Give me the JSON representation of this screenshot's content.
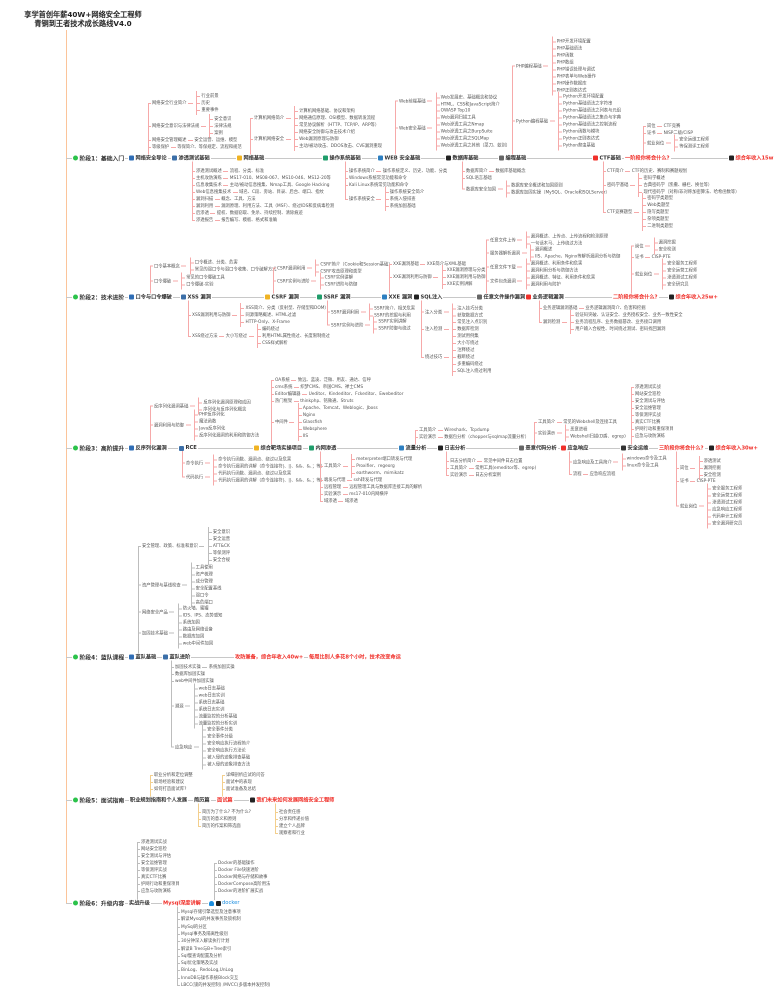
{
  "title": {
    "line1": "享学首创年薪40W+网络安全工程师",
    "line2": "青铜到王者技术成长路线V4.0"
  },
  "colors": {
    "axis": "#fbc49a",
    "row": "#c8c8c8",
    "pink": "#f6a9a9",
    "gray": "#bdbdbd",
    "gold": "#f3cf8d",
    "accent_red": "#f0302a",
    "stage_icon": "#2bc24a"
  },
  "stages": [
    {
      "nodes": [
        "阶段1：基础入门",
        "网络安全导论",
        "渗透测试基础",
        "网络基础",
        "操作系统基础",
        "WEB 安全基础",
        "数据库基础",
        "编程基础",
        "CTF基础",
        "一阶段你将会什么?",
        "综合年收入15w+"
      ],
      "branches": [
        [
          {
            "label": "网络安全行业简介",
            "items": [
              "行业前景",
              "历史",
              "重要事件"
            ]
          },
          {
            "label": "网络安全意识与法律法规",
            "items": [
              "安全意识",
              "法律法规",
              "案例"
            ]
          },
          {
            "label": "网络安全管理概述",
            "items": [
              "安全运营、运维、模型"
            ]
          },
          {
            "label": "等级保护",
            "items": [
              "等保简介、等保规定、流程和规范"
            ]
          }
        ],
        [
          {
            "label": "渗透测试概述",
            "items": [
              "流程、分类、标准"
            ]
          },
          {
            "label": "主机攻防演练",
            "items": [
              "MS17-010、MS08-067、MS10-046、MS12-20等"
            ]
          },
          {
            "label": "信息收集技术",
            "items": [
              "主动/被动信息搜集、Nmap工具、Google Hacking"
            ]
          },
          {
            "label": "Web信息搜集技术",
            "items": [
              "域名、C段、旁站、目录、后台、端口、指纹"
            ]
          },
          {
            "label": "漏洞扫描",
            "items": [
              "概念、工具、方法"
            ]
          },
          {
            "label": "漏洞利用",
            "items": [
              "漏洞原理、利用方法、工具（MSF）、绕过IDS和反病毒检测"
            ]
          },
          {
            "label": "后渗透",
            "items": [
              "提权、数据窃取、免杀、持续控制、清除痕迹"
            ]
          },
          {
            "label": "渗透报告",
            "items": [
              "报告编写、模板、格式和准确"
            ]
          }
        ],
        [
          {
            "label": "计算机网络简介",
            "items": [
              "计算机网络基础、协议和架构",
              "网络通信原理、OSI模型、数据转发流程",
              "常见协议解析（HTTP、TCP/IP、ARP等）"
            ]
          },
          {
            "label": "计算机网络安全",
            "items": [
              "网络安全防御与攻击技术介绍",
              "Web漏洞原理与防御",
              "主动/被动攻击、DDOS攻击、CVE漏洞重现"
            ]
          }
        ],
        [
          {
            "label": "操作系统简介",
            "items": [
              "操作系统定义、历史、功能、分类"
            ]
          },
          {
            "label": "Windows系统常见功能和命令"
          },
          {
            "label": "Kali Linux系统常见功能和命令"
          },
          {
            "label": "操作系统安全",
            "items": [
              "操作系统安全简介",
              "系统入侵排查",
              "系统加固基础"
            ]
          }
        ],
        [
          {
            "label": "Web前端基础",
            "items": [
              "Web发展史、基础概念和协议",
              "HTML、CSS和JavaScript简介"
            ]
          },
          {
            "label": "Web安全基础",
            "items": [
              "OWASP Top10",
              "Web漏洞扫描工具",
              "Web渗透工具之Nmap",
              "Web渗透工具之BurpSuite",
              "Web渗透工具之SQLMap",
              "Web渗透工具之其他（菜刀、蚁剑）"
            ]
          }
        ],
        [
          {
            "label": "数据库简介",
            "items": [
              "数据库基础概念"
            ]
          },
          {
            "label": "SQL语言基础"
          },
          {
            "label": "数据库安全加固",
            "items": [
              "数据库安全概述和加固原则",
              "数据库加固实操（MySQL、Oracle和SQLServer）"
            ]
          }
        ],
        [
          {
            "label": "PHP编程基础",
            "items": [
              "PHP开发环境配置",
              "PHP基础语法",
              "PHP函数",
              "PHP数组",
              "PHP错误处理与调试",
              "PHP表单与Web操作",
              "PHP操作数据库",
              "PHP正则表达式"
            ]
          },
          {
            "label": "Python编程基础",
            "items": [
              "Python开发环境配置",
              "Python基础语法之字符串",
              "Python基础语法之列表与元组",
              "Python基础语法之集合与字典",
              "Python基础语法之控制流程",
              "Python函数与模块",
              "Python正则表达式",
              "Python爬虫基础"
            ]
          }
        ],
        [
          {
            "label": "CTF简介",
            "items": [
              "CTF的历史、赛制和赛题规划"
            ]
          },
          {
            "label": "密码学基础",
            "items": [
              "密码学概述",
              "古典密码学（凯撒、栅栏、换位等）",
              "现代密码学（对称/非对称加密算法、哈希函数等）"
            ]
          },
          {
            "label": "CTF竞赛题型",
            "items": [
              "密码学类题型",
              "Web类题型",
              "隐写类题型",
              "杂项类题型",
              "二进制类题型"
            ]
          }
        ],
        [
          {
            "label": "岗位",
            "items": [
              "CTF竞赛"
            ]
          },
          {
            "label": "证书",
            "items": [
              "NISP二级/CISP"
            ]
          },
          {
            "label": "就业岗位",
            "items": [
              "安全运维工程师",
              "等保测评工程师"
            ]
          }
        ]
      ]
    },
    {
      "nodes": [
        "阶段2：技术进阶",
        "口令与口令爆破",
        "XSS 漏洞",
        "CSRF 漏洞",
        "SSRF 漏洞",
        "XXE 漏洞",
        "SQL注入",
        "任意文件操作漏洞",
        "业务逻辑漏洞",
        "二阶段你将会什么?",
        "综合年收入25w+"
      ],
      "branches": [
        [
          {
            "label": "口令基本概念",
            "items": [
              "口令概述、分类、危害",
              "常见的弱口令与弱口令收集、口令破解方式"
            ]
          },
          {
            "label": "口令爆破",
            "items": [
              "常见的口令爆破工具",
              "口令爆破-实验"
            ]
          }
        ],
        [
          {
            "label": "XSS漏洞利用与防御",
            "items": [
              "XSS简介、分类（反射型、存储型和DOM）",
              "同源策略概述、HTML过滤",
              "HTTP-Only、X-Frame"
            ]
          },
          {
            "label": "XSS绕过方法",
            "items": [
              {
                "label": "大小写绕过",
                "items": [
                  "编码绕过",
                  "利用HTML属性绕过、长度限制绕过",
                  "CSS样式解析"
                ]
              }
            ]
          }
        ],
        [
          {
            "label": "CSRF漏洞利用",
            "items": [
              "CSRF简介（Cookie和Session基础）",
              "CSRF攻击原理和类型"
            ]
          },
          {
            "label": "CSRF实例与进阶",
            "items": [
              "CSRF实例讲解",
              "CSRF进阶与防御"
            ]
          }
        ],
        [
          {
            "label": "SSRF漏洞利用",
            "items": [
              "SSRF简介、相关危害",
              "SSRF的挖掘与利用"
            ]
          },
          {
            "label": "SSRF实例与进阶",
            "items": [
              "SSRF实例讲解",
              "SSRF防御与绕过"
            ]
          }
        ],
        [
          {
            "label": "XXE漏洞基础",
            "items": [
              "XXE简介与XML基础"
            ]
          },
          {
            "label": "XXE漏洞利用与防御",
            "items": [
              "XXE漏洞原理与分类",
              "XXE漏洞利用与防御",
              "XXE实例讲解"
            ]
          }
        ],
        [
          {
            "label": "注入分类",
            "items": [
              "注入技巧分类",
              "获取数据方式"
            ]
          },
          {
            "label": "注入检测",
            "items": [
              "常见注入点识别",
              "数据库检测",
              "测试用例集"
            ]
          },
          {
            "label": "绕过技巧",
            "items": [
              "大小写绕过",
              "注释绕过",
              "截断绕过",
              "多重编码绕过",
              "SQL注入绕过利用"
            ]
          }
        ],
        [
          {
            "label": "任意文件上传",
            "items": [
              "漏洞概述、上传点、上传流程和检测原理",
              "一句话木马、上传绕过方法"
            ]
          },
          {
            "label": "服务器解析漏洞",
            "items": [
              "漏洞概述",
              "IIS、Apache、Nginx等解析漏洞分析与防御"
            ]
          },
          {
            "label": "任意文件下载",
            "items": [
              "漏洞概述、利用条件和危害",
              "漏洞利用分析与防御方法"
            ]
          },
          {
            "label": "文件包含漏洞",
            "items": [
              "漏洞概述、特征、利用条件和危害",
              "漏洞利用与防护"
            ]
          }
        ],
        [
          {
            "label": "业务逻辑漏洞基础",
            "items": [
              "业务逻辑漏洞简介、危害和挖掘"
            ]
          },
          {
            "label": "漏洞检测",
            "items": [
              "验证码突破、认证安全、业务授权安全、业务一致性安全",
              "业务流程乱序、业务数据篡改、业务接口调用",
              "用户输入合规性、时间绕过测试、密码找回漏洞"
            ]
          }
        ],
        [
          {
            "label": "岗位",
            "items": [
              "漏洞挖掘",
              "安全检测"
            ]
          },
          {
            "label": "证书",
            "items": [
              "CISP-PTE"
            ]
          },
          {
            "label": "就业岗位",
            "items": [
              "安全服务工程师",
              "安全运营工程师",
              "渗透测试工程师",
              "安全研究员"
            ]
          }
        ]
      ]
    },
    {
      "nodes": [
        "阶段3：高阶提升",
        "反序列化漏洞",
        "RCE",
        "综合靶场实操项目",
        "内网渗透",
        "流量分析",
        "日志分析",
        "恶意代码分析",
        "应急响应",
        "安全运维",
        "三阶段你将会什么?",
        "综合年收入30w+"
      ],
      "branches": [
        [
          {
            "label": "反序列化漏洞基础",
            "items": [
              "反序列化漏洞原理和成因",
              "序列化与反序列化概念"
            ]
          },
          {
            "label": "漏洞利用与防御",
            "items": [
              "PHP反序列化",
              "魔法函数",
              "Java反序列化",
              "反序列化漏洞的利用和防御方法"
            ]
          }
        ],
        [
          {
            "label": "命令执行",
            "items": [
              "命令执行函数、漏洞点、绕过以及危害",
              "命令执行漏洞的详解（命令连接符|、||、&&、&、；等）"
            ]
          },
          {
            "label": "代码执行",
            "items": [
              "代码执行函数、漏洞点、绕过以及危害",
              "代码执行漏洞的详解（命令连接符|、||、&&、&、；等）"
            ]
          }
        ],
        [
          {
            "label": "OA系统",
            "items": [
              "致远、蓝凌、泛微、用友、通达、信呼"
            ]
          },
          {
            "label": "cms系统",
            "items": [
              "织梦CMS、帝国CMS、禅士CMS"
            ]
          },
          {
            "label": "Editor编辑器",
            "items": [
              "Ueditor、Kindeditor、Fckeditor、Ewebeditor"
            ]
          },
          {
            "label": "热门框架",
            "items": [
              "thinkphp、铭微通、Struts"
            ]
          },
          {
            "label": "中间件",
            "items": [
              "Apache、Tomcat、Weblogic、Jboss",
              "Nginx",
              "Glassfish",
              "Websphere",
              "IIS"
            ]
          }
        ],
        [
          {
            "label": "工具简介",
            "items": [
              "meterpreter端口转发与代理",
              "Proxifier、regeorg",
              "earthworm、mimikatz"
            ]
          },
          {
            "label": "端发与代理",
            "items": [
              "ssh转发与代理"
            ]
          },
          {
            "label": "远程管理",
            "items": [
              "远程管理工具与数据库连接工具的解析"
            ]
          },
          {
            "label": "实验演示",
            "items": [
              "ms17-010内网横评"
            ]
          },
          {
            "label": "域渗透",
            "items": [
              "域渗透"
            ]
          }
        ],
        [
          {
            "label": "工具简介",
            "items": [
              "Wireshark、Tcpdump"
            ]
          },
          {
            "label": "实验演示",
            "items": [
              "数据包分析（chopper与sqlmap流量分析）"
            ]
          }
        ],
        [
          {
            "label": "日志分析简介",
            "items": [
              "常见中间件日志位置"
            ]
          },
          {
            "label": "工具简介",
            "items": [
              "常用工具(emeditor等、egrep)"
            ]
          },
          {
            "label": "实验演示",
            "items": [
              "日志分析案例"
            ]
          }
        ],
        [
          {
            "label": "工具简介",
            "items": [
              "常见的Webshell及连接工具"
            ]
          },
          {
            "label": "实验演示",
            "items": [
              "恶意进程",
              "Webshell扫描(D盾、egrep)"
            ]
          }
        ],
        [
          {
            "label": "应急响应及工具简介",
            "items": [
              "windows命令及工具",
              "linux命令及工具"
            ]
          },
          {
            "label": "流程",
            "items": [
              "应急响应流程"
            ]
          }
        ],
        [
          {
            "label": "渗透测试实战"
          },
          {
            "label": "网站安全巡检"
          },
          {
            "label": "安全测试与评估"
          },
          {
            "label": "安全运维管理"
          },
          {
            "label": "等保测评实战"
          },
          {
            "label": "真实CTF比赛"
          },
          {
            "label": "护网行动和重保项目"
          },
          {
            "label": "应急与攻防演练"
          }
        ],
        [
          {
            "label": "岗位",
            "items": [
              "渗透测试",
              "漏洞挖掘",
              "安全检测"
            ]
          },
          {
            "label": "证书",
            "items": [
              "CISP-PTE"
            ]
          },
          {
            "label": "就业岗位",
            "items": [
              "安全服务工程师",
              "安全运营工程师",
              "渗透测试工程师",
              "应急响应工程师",
              "代码审计工程师",
              "安全漏洞研究员"
            ]
          }
        ]
      ]
    },
    {
      "nodes": [
        "阶段4：蓝队课程",
        "蓝队基础",
        "蓝队进阶",
        "攻防兼备，综合年收入40w+",
        "每周比别人多花8个小时，技术改变命运"
      ],
      "branches": [
        [
          {
            "label": "安全管理、政策、标准和意识",
            "items": [
              "安全意识",
              "安全运营",
              "ATT&CK",
              "等保测评",
              "安全合规"
            ]
          },
          {
            "label": "资产管理与基线检查",
            "items": [
              "工具使用",
              "资产梳理",
              "成分管理",
              "安全配置基线",
              "弱口令",
              "高危端口"
            ]
          },
          {
            "label": "网络安全产品",
            "items": [
              "防火墙、蜜罐",
              "IDS、IPS、态势感知"
            ]
          },
          {
            "label": "加固技术基础",
            "items": [
              "系统加固",
              "路由及网络设备",
              "数据库加固",
              "web中间件加固"
            ]
          }
        ],
        [
          {
            "label": "加固技术实操",
            "items": [
              "系统加固实操"
            ]
          },
          {
            "label": "数据库加固实操"
          },
          {
            "label": "web中间件加固实操"
          },
          {
            "label": "溯源",
            "items": [
              "web日志基础",
              "web日志实训",
              "系统日志基础",
              "系统日志实训",
              "流量监控的分析基础",
              "流量监控的分析实训"
            ]
          },
          {
            "label": "应急响应",
            "items": [
              "安全事件分类",
              "安全事件分级",
              "安全响应执行流程简介",
              "安全响应执行方法论",
              "被入侵的迹象排查基础",
              "被入侵的迹象排查方法"
            ]
          }
        ]
      ]
    },
    {
      "nodes": [
        "阶段5：面试指南",
        "职业规划指南和个人发展",
        "简历篇",
        "面试篇",
        "我们未来如何发展网络安全工程师"
      ],
      "branches": [
        [
          {
            "label": "职业分析和定位调整"
          },
          {
            "label": "职场经验和建议"
          },
          {
            "label": "如何打造面试库?"
          }
        ],
        [
          {
            "label": "详细剖析应试的问答"
          },
          {
            "label": "面试中的表现"
          },
          {
            "label": "面试准备及总结"
          }
        ],
        [
          {
            "label": "简历为了什么? 不为什么?"
          },
          {
            "label": "简历的意义和原则"
          },
          {
            "label": "简历的作案和筛选面"
          }
        ],
        [
          {
            "label": "社会责任感"
          },
          {
            "label": "分享和传递价值"
          },
          {
            "label": "建立个人品牌"
          },
          {
            "label": "观察者和行业"
          }
        ]
      ]
    },
    {
      "nodes": [
        "阶段6：升级内容",
        "实战升级",
        "Mysql深度讲解",
        "docker"
      ],
      "branches": [
        [
          {
            "label": "渗透测试实战"
          },
          {
            "label": "网站安全巡检"
          },
          {
            "label": "安全测试与评估"
          },
          {
            "label": "安全运维管理"
          },
          {
            "label": "等保测评实战"
          },
          {
            "label": "真实CTF比赛"
          },
          {
            "label": "护网行动和重保项目"
          },
          {
            "label": "应急与攻防演练"
          }
        ],
        [
          {
            "label": "Docker的基础操作"
          },
          {
            "label": "Docker File快速进阶"
          },
          {
            "label": "Docker网络与存储和故事"
          },
          {
            "label": "DockerCompose高阶用法"
          },
          {
            "label": "Docker的进阶扩展实战"
          }
        ],
        [
          {
            "label": "Mysql存储引擎选型及注意事项"
          },
          {
            "label": "解读Mysql的并发事务及锁机制"
          },
          {
            "label": "MySql的分区"
          },
          {
            "label": "Mysql事务及隔离性级别"
          },
          {
            "label": "30分钟深入解读执行计划"
          },
          {
            "label": "解读B Tree与B+Tree索引"
          },
          {
            "label": "Sql慢查询配置及分析"
          },
          {
            "label": "Sql优化策略及实战"
          },
          {
            "label": "BinLog、RedoLog,UnLog"
          },
          {
            "label": "InnoDB与操作系统Block交互"
          },
          {
            "label": "LBCC(锁的并发控制) /MVCC(多版本并发控制)"
          }
        ]
      ]
    }
  ]
}
